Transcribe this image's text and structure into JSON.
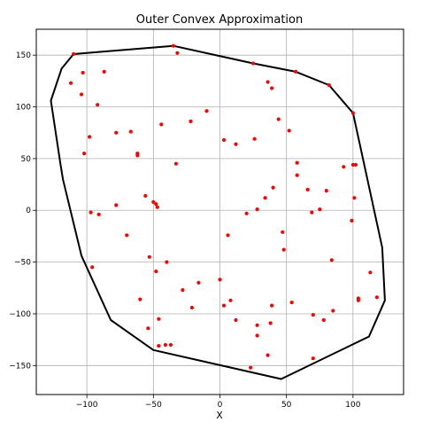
{
  "chart_data": {
    "type": "scatter",
    "title": "Outer Convex Approximation",
    "xlabel": "X",
    "ylabel": "",
    "xlim": [
      -138,
      138
    ],
    "ylim": [
      -178,
      175
    ],
    "grid": true,
    "x_ticks": [
      -100,
      -50,
      0,
      50,
      100
    ],
    "y_ticks": [
      -150,
      -100,
      -50,
      0,
      50,
      100,
      150
    ],
    "point_color": "#ff0000",
    "hull_color": "#000000",
    "hull": [
      [
        -110,
        151
      ],
      [
        -35,
        159
      ],
      [
        25,
        142
      ],
      [
        57,
        134
      ],
      [
        82,
        121
      ],
      [
        100,
        94
      ],
      [
        122,
        -36
      ],
      [
        124,
        -87
      ],
      [
        112,
        -122
      ],
      [
        46,
        -163
      ],
      [
        -50,
        -135
      ],
      [
        -82,
        -106
      ],
      [
        -104,
        -44
      ],
      [
        -118,
        30
      ],
      [
        -120,
        46
      ],
      [
        -127,
        106
      ],
      [
        -119,
        137
      ]
    ],
    "points": [
      [
        -110,
        151
      ],
      [
        -35,
        159
      ],
      [
        -32,
        152
      ],
      [
        25,
        142
      ],
      [
        57,
        134
      ],
      [
        82,
        121
      ],
      [
        100,
        94
      ],
      [
        -112,
        123
      ],
      [
        -103,
        133
      ],
      [
        -87,
        134
      ],
      [
        -104,
        112
      ],
      [
        36,
        124
      ],
      [
        39,
        118
      ],
      [
        -92,
        102
      ],
      [
        -10,
        96
      ],
      [
        -22,
        86
      ],
      [
        -44,
        83
      ],
      [
        44,
        88
      ],
      [
        -78,
        75
      ],
      [
        -67,
        76
      ],
      [
        -98,
        71
      ],
      [
        52,
        77
      ],
      [
        3,
        68
      ],
      [
        12,
        64
      ],
      [
        26,
        69
      ],
      [
        -62,
        55
      ],
      [
        -62,
        53
      ],
      [
        -102,
        55
      ],
      [
        -33,
        45
      ],
      [
        58,
        46
      ],
      [
        93,
        42
      ],
      [
        100,
        44
      ],
      [
        102,
        44
      ],
      [
        58,
        34
      ],
      [
        40,
        22
      ],
      [
        66,
        20
      ],
      [
        80,
        19
      ],
      [
        -56,
        14
      ],
      [
        34,
        12
      ],
      [
        101,
        12
      ],
      [
        -50,
        8
      ],
      [
        -48,
        6
      ],
      [
        -47,
        3
      ],
      [
        -78,
        5
      ],
      [
        28,
        1
      ],
      [
        75,
        1
      ],
      [
        69,
        -2
      ],
      [
        -97,
        -2
      ],
      [
        -91,
        -4
      ],
      [
        20,
        -3
      ],
      [
        99,
        -10
      ],
      [
        47,
        -21
      ],
      [
        -70,
        -24
      ],
      [
        6,
        -24
      ],
      [
        48,
        -38
      ],
      [
        -53,
        -45
      ],
      [
        -40,
        -50
      ],
      [
        84,
        -48
      ],
      [
        -96,
        -55
      ],
      [
        -48,
        -59
      ],
      [
        113,
        -60
      ],
      [
        -16,
        -70
      ],
      [
        0,
        -67
      ],
      [
        -28,
        -77
      ],
      [
        118,
        -84
      ],
      [
        104,
        -85
      ],
      [
        104,
        -87
      ],
      [
        -60,
        -86
      ],
      [
        54,
        -89
      ],
      [
        8,
        -87
      ],
      [
        3,
        -92
      ],
      [
        39,
        -92
      ],
      [
        -21,
        -94
      ],
      [
        85,
        -97
      ],
      [
        70,
        -101
      ],
      [
        78,
        -106
      ],
      [
        -46,
        -105
      ],
      [
        12,
        -106
      ],
      [
        28,
        -111
      ],
      [
        -54,
        -114
      ],
      [
        38,
        -109
      ],
      [
        28,
        -121
      ],
      [
        -46,
        -131
      ],
      [
        -41,
        -130
      ],
      [
        -37,
        -130
      ],
      [
        36,
        -140
      ],
      [
        70,
        -143
      ],
      [
        23,
        -152
      ]
    ]
  }
}
